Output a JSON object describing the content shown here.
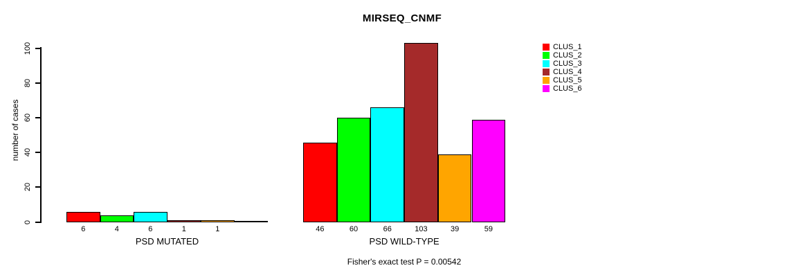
{
  "chart_data": {
    "type": "bar",
    "title": "MIRSEQ_CNMF",
    "ylabel": "number of cases",
    "ylim": [
      0,
      100
    ],
    "yticks": [
      0,
      20,
      40,
      60,
      80,
      100
    ],
    "grid": false,
    "legend_position": "right",
    "clusters": [
      {
        "name": "CLUS_1",
        "color": "#FF0000"
      },
      {
        "name": "CLUS_2",
        "color": "#00FF00"
      },
      {
        "name": "CLUS_3",
        "color": "#00FFFF"
      },
      {
        "name": "CLUS_4",
        "color": "#A52A2A"
      },
      {
        "name": "CLUS_5",
        "color": "#FFA500"
      },
      {
        "name": "CLUS_6",
        "color": "#FF00FF"
      }
    ],
    "groups": [
      {
        "label": "PSD MUTATED",
        "values": [
          6,
          4,
          6,
          1,
          1,
          0
        ],
        "bar_labels": [
          "6",
          "4",
          "6",
          "1",
          "1",
          ""
        ]
      },
      {
        "label": "PSD WILD-TYPE",
        "values": [
          46,
          60,
          66,
          103,
          39,
          59
        ],
        "bar_labels": [
          "46",
          "60",
          "66",
          "103",
          "39",
          "59"
        ]
      }
    ],
    "annotation": "Fisher's exact test P = 0.00542"
  }
}
